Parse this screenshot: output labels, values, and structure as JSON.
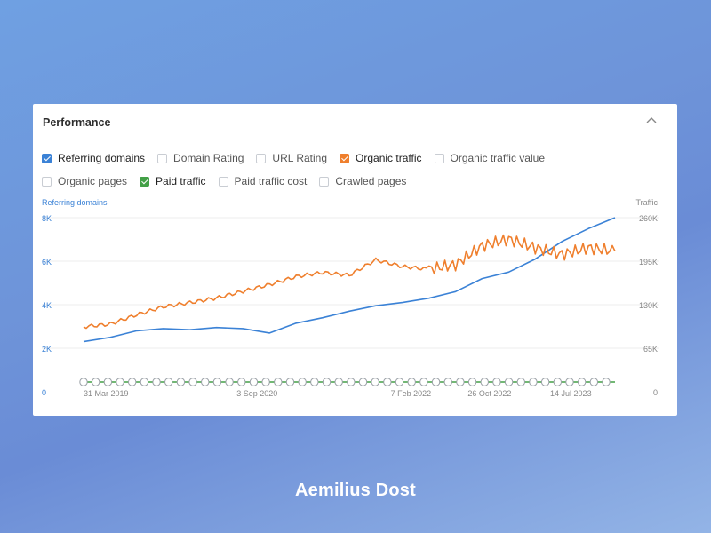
{
  "card": {
    "title": "Performance"
  },
  "options": {
    "row1": [
      {
        "label": "Referring domains",
        "checked": true,
        "color": "#3b82d6"
      },
      {
        "label": "Domain Rating",
        "checked": false
      },
      {
        "label": "URL Rating",
        "checked": false
      },
      {
        "label": "Organic traffic",
        "checked": true,
        "color": "#ef7f2d"
      },
      {
        "label": "Organic traffic value",
        "checked": false
      }
    ],
    "row2": [
      {
        "label": "Organic pages",
        "checked": false
      },
      {
        "label": "Paid traffic",
        "checked": true,
        "color": "#43a047"
      },
      {
        "label": "Paid traffic cost",
        "checked": false
      },
      {
        "label": "Crawled pages",
        "checked": false
      }
    ]
  },
  "chart_data": {
    "type": "line",
    "ylabel_left": "Referring domains",
    "ylabel_right": "Traffic",
    "left_axis": {
      "ticks": [
        "0",
        "2K",
        "4K",
        "6K",
        "8K"
      ],
      "values": [
        0,
        2000,
        4000,
        6000,
        8000
      ],
      "ylim": [
        0,
        8000
      ],
      "color": "#3b82d6"
    },
    "right_axis": {
      "ticks": [
        "0",
        "65K",
        "130K",
        "195K",
        "260K"
      ],
      "values": [
        0,
        65000,
        130000,
        195000,
        260000
      ],
      "ylim": [
        0,
        260000
      ]
    },
    "x_ticks": [
      "31 Mar 2019",
      "3 Sep 2020",
      "7 Feb 2022",
      "26 Oct 2022",
      "14 Jul 2023"
    ],
    "x": [
      "2019-03",
      "2019-06",
      "2019-09",
      "2019-12",
      "2020-03",
      "2020-06",
      "2020-09",
      "2020-12",
      "2021-03",
      "2021-06",
      "2021-09",
      "2021-12",
      "2022-03",
      "2022-06",
      "2022-09",
      "2022-12",
      "2023-03",
      "2023-06",
      "2023-09",
      "2023-12",
      "2024-03"
    ],
    "series": [
      {
        "name": "Referring domains",
        "axis": "left",
        "color": "#3b82d6",
        "values": [
          2300,
          2500,
          2800,
          2900,
          2850,
          2950,
          2900,
          2700,
          3150,
          3400,
          3700,
          3950,
          4100,
          4300,
          4600,
          5200,
          5500,
          6100,
          6900,
          7500,
          8000
        ]
      },
      {
        "name": "Organic traffic",
        "axis": "right",
        "color": "#ef7f2d",
        "values": [
          97000,
          101000,
          115000,
          127000,
          133000,
          140000,
          150000,
          160000,
          172000,
          178000,
          174000,
          197000,
          187000,
          183000,
          190000,
          218000,
          228000,
          215000,
          205000,
          215000,
          210000
        ]
      },
      {
        "name": "Paid traffic",
        "axis": "right",
        "color": "#43a047",
        "values": [
          2000,
          2000,
          2000,
          2000,
          2000,
          2000,
          2000,
          2000,
          2000,
          2000,
          2000,
          2000,
          2000,
          2000,
          2000,
          2000,
          2000,
          2000,
          2000,
          2000,
          2000
        ]
      }
    ],
    "annotation_markers": 44,
    "grid": true,
    "legend": "checkbox-list-top"
  },
  "footer": {
    "author": "Aemilius Dost"
  }
}
